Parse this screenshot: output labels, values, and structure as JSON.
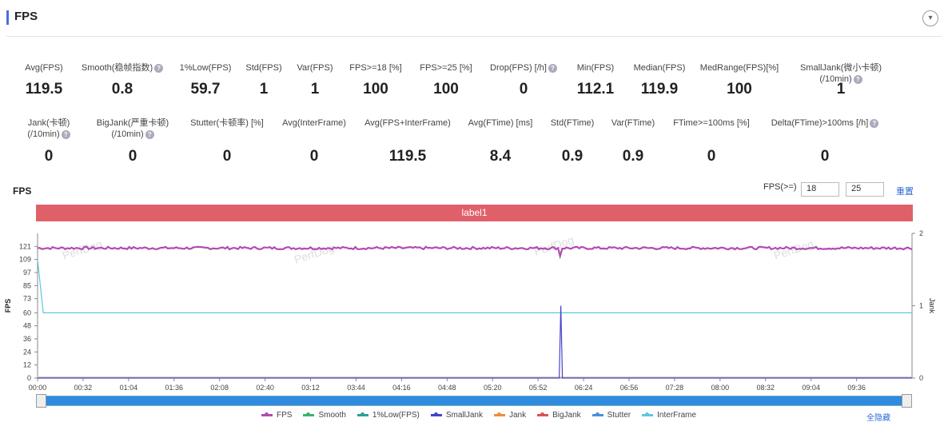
{
  "header": {
    "title": "FPS",
    "collapse_icon": "▾"
  },
  "metrics_row1": [
    {
      "label": "Avg(FPS)",
      "value": "119.5",
      "help": false
    },
    {
      "label": "Smooth(稳帧指数)",
      "value": "0.8",
      "help": true
    },
    {
      "label": "1%Low(FPS)",
      "value": "59.7",
      "help": false
    },
    {
      "label": "Std(FPS)",
      "value": "1",
      "help": false
    },
    {
      "label": "Var(FPS)",
      "value": "1",
      "help": false
    },
    {
      "label": "FPS>=18 [%]",
      "value": "100",
      "help": false
    },
    {
      "label": "FPS>=25 [%]",
      "value": "100",
      "help": false
    },
    {
      "label": "Drop(FPS) [/h]",
      "value": "0",
      "help": true
    },
    {
      "label": "Min(FPS)",
      "value": "112.1",
      "help": false
    },
    {
      "label": "Median(FPS)",
      "value": "119.9",
      "help": false
    },
    {
      "label": "MedRange(FPS)[%]",
      "value": "100",
      "help": false
    },
    {
      "label": "SmallJank(微小卡顿)",
      "label2": "(/10min)",
      "value": "1",
      "help": true
    }
  ],
  "metrics_row2": [
    {
      "label": "Jank(卡顿)",
      "label2": "(/10min)",
      "value": "0",
      "help": true
    },
    {
      "label": "BigJank(严重卡顿)",
      "label2": "(/10min)",
      "value": "0",
      "help": true
    },
    {
      "label": "Stutter(卡顿率) [%]",
      "value": "0",
      "help": false
    },
    {
      "label": "Avg(InterFrame)",
      "value": "0",
      "help": false
    },
    {
      "label": "Avg(FPS+InterFrame)",
      "value": "119.5",
      "help": false
    },
    {
      "label": "Avg(FTime) [ms]",
      "value": "8.4",
      "help": false
    },
    {
      "label": "Std(FTime)",
      "value": "0.9",
      "help": false
    },
    {
      "label": "Var(FTime)",
      "value": "0.9",
      "help": false
    },
    {
      "label": "FTime>=100ms [%]",
      "value": "0",
      "help": false
    },
    {
      "label": "Delta(FTime)>100ms [/h]",
      "value": "0",
      "help": true
    }
  ],
  "controls": {
    "chart_title": "FPS",
    "fps_threshold_label": "FPS(>=)",
    "threshold_1": "18",
    "threshold_2": "25",
    "reset_label": "重置"
  },
  "label_band": "label1",
  "legend": {
    "items": [
      {
        "name": "FPS",
        "color": "#b24bb0"
      },
      {
        "name": "Smooth",
        "color": "#3cb371"
      },
      {
        "name": "1%Low(FPS)",
        "color": "#2aa198"
      },
      {
        "name": "SmallJank",
        "color": "#4444cc"
      },
      {
        "name": "Jank",
        "color": "#f08c3c"
      },
      {
        "name": "BigJank",
        "color": "#d9534f"
      },
      {
        "name": "Stutter",
        "color": "#4a90d9"
      },
      {
        "name": "InterFrame",
        "color": "#5bc8dd"
      }
    ],
    "hide_all_label": "全隐藏"
  },
  "watermark": "PerfDog",
  "chart_data": {
    "type": "line",
    "xlabel": "",
    "ylabel": "FPS",
    "y2label": "Jank",
    "yticks": [
      0,
      12,
      24,
      36,
      48,
      60,
      73,
      85,
      97,
      109,
      121
    ],
    "y2ticks": [
      0,
      1,
      2
    ],
    "ylim": [
      0,
      133
    ],
    "y2lim": [
      0,
      2
    ],
    "xticks": [
      "00:00",
      "00:32",
      "01:04",
      "01:36",
      "02:08",
      "02:40",
      "03:12",
      "03:44",
      "04:16",
      "04:48",
      "05:20",
      "05:52",
      "06:24",
      "06:56",
      "07:28",
      "08:00",
      "08:32",
      "09:04",
      "09:36"
    ],
    "duration_s": 615,
    "grid": false,
    "series": [
      {
        "name": "FPS",
        "axis": "left",
        "baseline": 119.5,
        "noise": 1.2,
        "dip": {
          "t": 367,
          "value": 112.1
        }
      },
      {
        "name": "InterFrame",
        "axis": "left",
        "start_value": 109,
        "settle_t": 4,
        "steady_value": 60
      },
      {
        "name": "SmallJank",
        "axis": "right",
        "baseline": 0,
        "spike": {
          "t": 368,
          "value": 1
        }
      },
      {
        "name": "Stutter",
        "axis": "left",
        "baseline": 0
      }
    ]
  }
}
